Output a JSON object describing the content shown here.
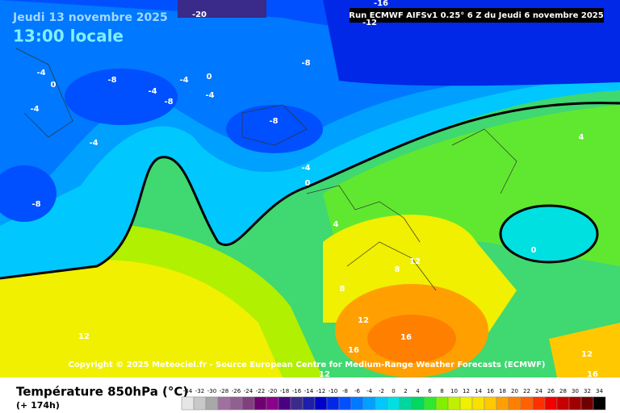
{
  "header": {
    "date": "Jeudi 13 novembre 2025",
    "time": "13:00 locale",
    "run": "Run ECMWF AIFSv1 0.25° 6 Z du Jeudi 6 novembre 2025"
  },
  "map": {
    "contour_labels": [
      -20,
      -16,
      -12,
      -8,
      -8,
      -4,
      0,
      -4,
      -4,
      -8,
      -4,
      0,
      -4,
      -8,
      -4,
      -8,
      -4,
      0,
      4,
      4,
      8,
      12,
      8,
      0,
      12,
      16,
      16,
      12,
      12,
      12,
      16
    ],
    "copyright": "Copyright © 2025 Meteociel.fr - Source European Centre for Medium-Range Weather Forecasts (ECMWF)"
  },
  "legend": {
    "title": "Température 850hPa (°C)",
    "lead": "(+ 174h)",
    "ticks": [
      -34,
      -32,
      -30,
      -28,
      -26,
      -24,
      -22,
      -20,
      -18,
      -16,
      -14,
      -12,
      -10,
      -8,
      -6,
      -4,
      -2,
      0,
      2,
      4,
      6,
      8,
      10,
      12,
      14,
      16,
      18,
      20,
      22,
      24,
      26,
      28,
      30,
      32,
      34
    ],
    "colors": [
      "#e6e6e6",
      "#c8c8c8",
      "#a8a8a8",
      "#a070a0",
      "#906090",
      "#804080",
      "#700070",
      "#8a008a",
      "#4b0082",
      "#3a2a8a",
      "#1e1eaa",
      "#0000c8",
      "#0028e6",
      "#0050ff",
      "#0078ff",
      "#00a0ff",
      "#00c8ff",
      "#00e0e0",
      "#00d7a0",
      "#00d860",
      "#30e830",
      "#80f000",
      "#c0f000",
      "#f0f000",
      "#f8e000",
      "#ffc800",
      "#ffa000",
      "#ff8000",
      "#ff6000",
      "#ff3000",
      "#f00000",
      "#c80000",
      "#a00000",
      "#700000",
      "#000000"
    ]
  }
}
